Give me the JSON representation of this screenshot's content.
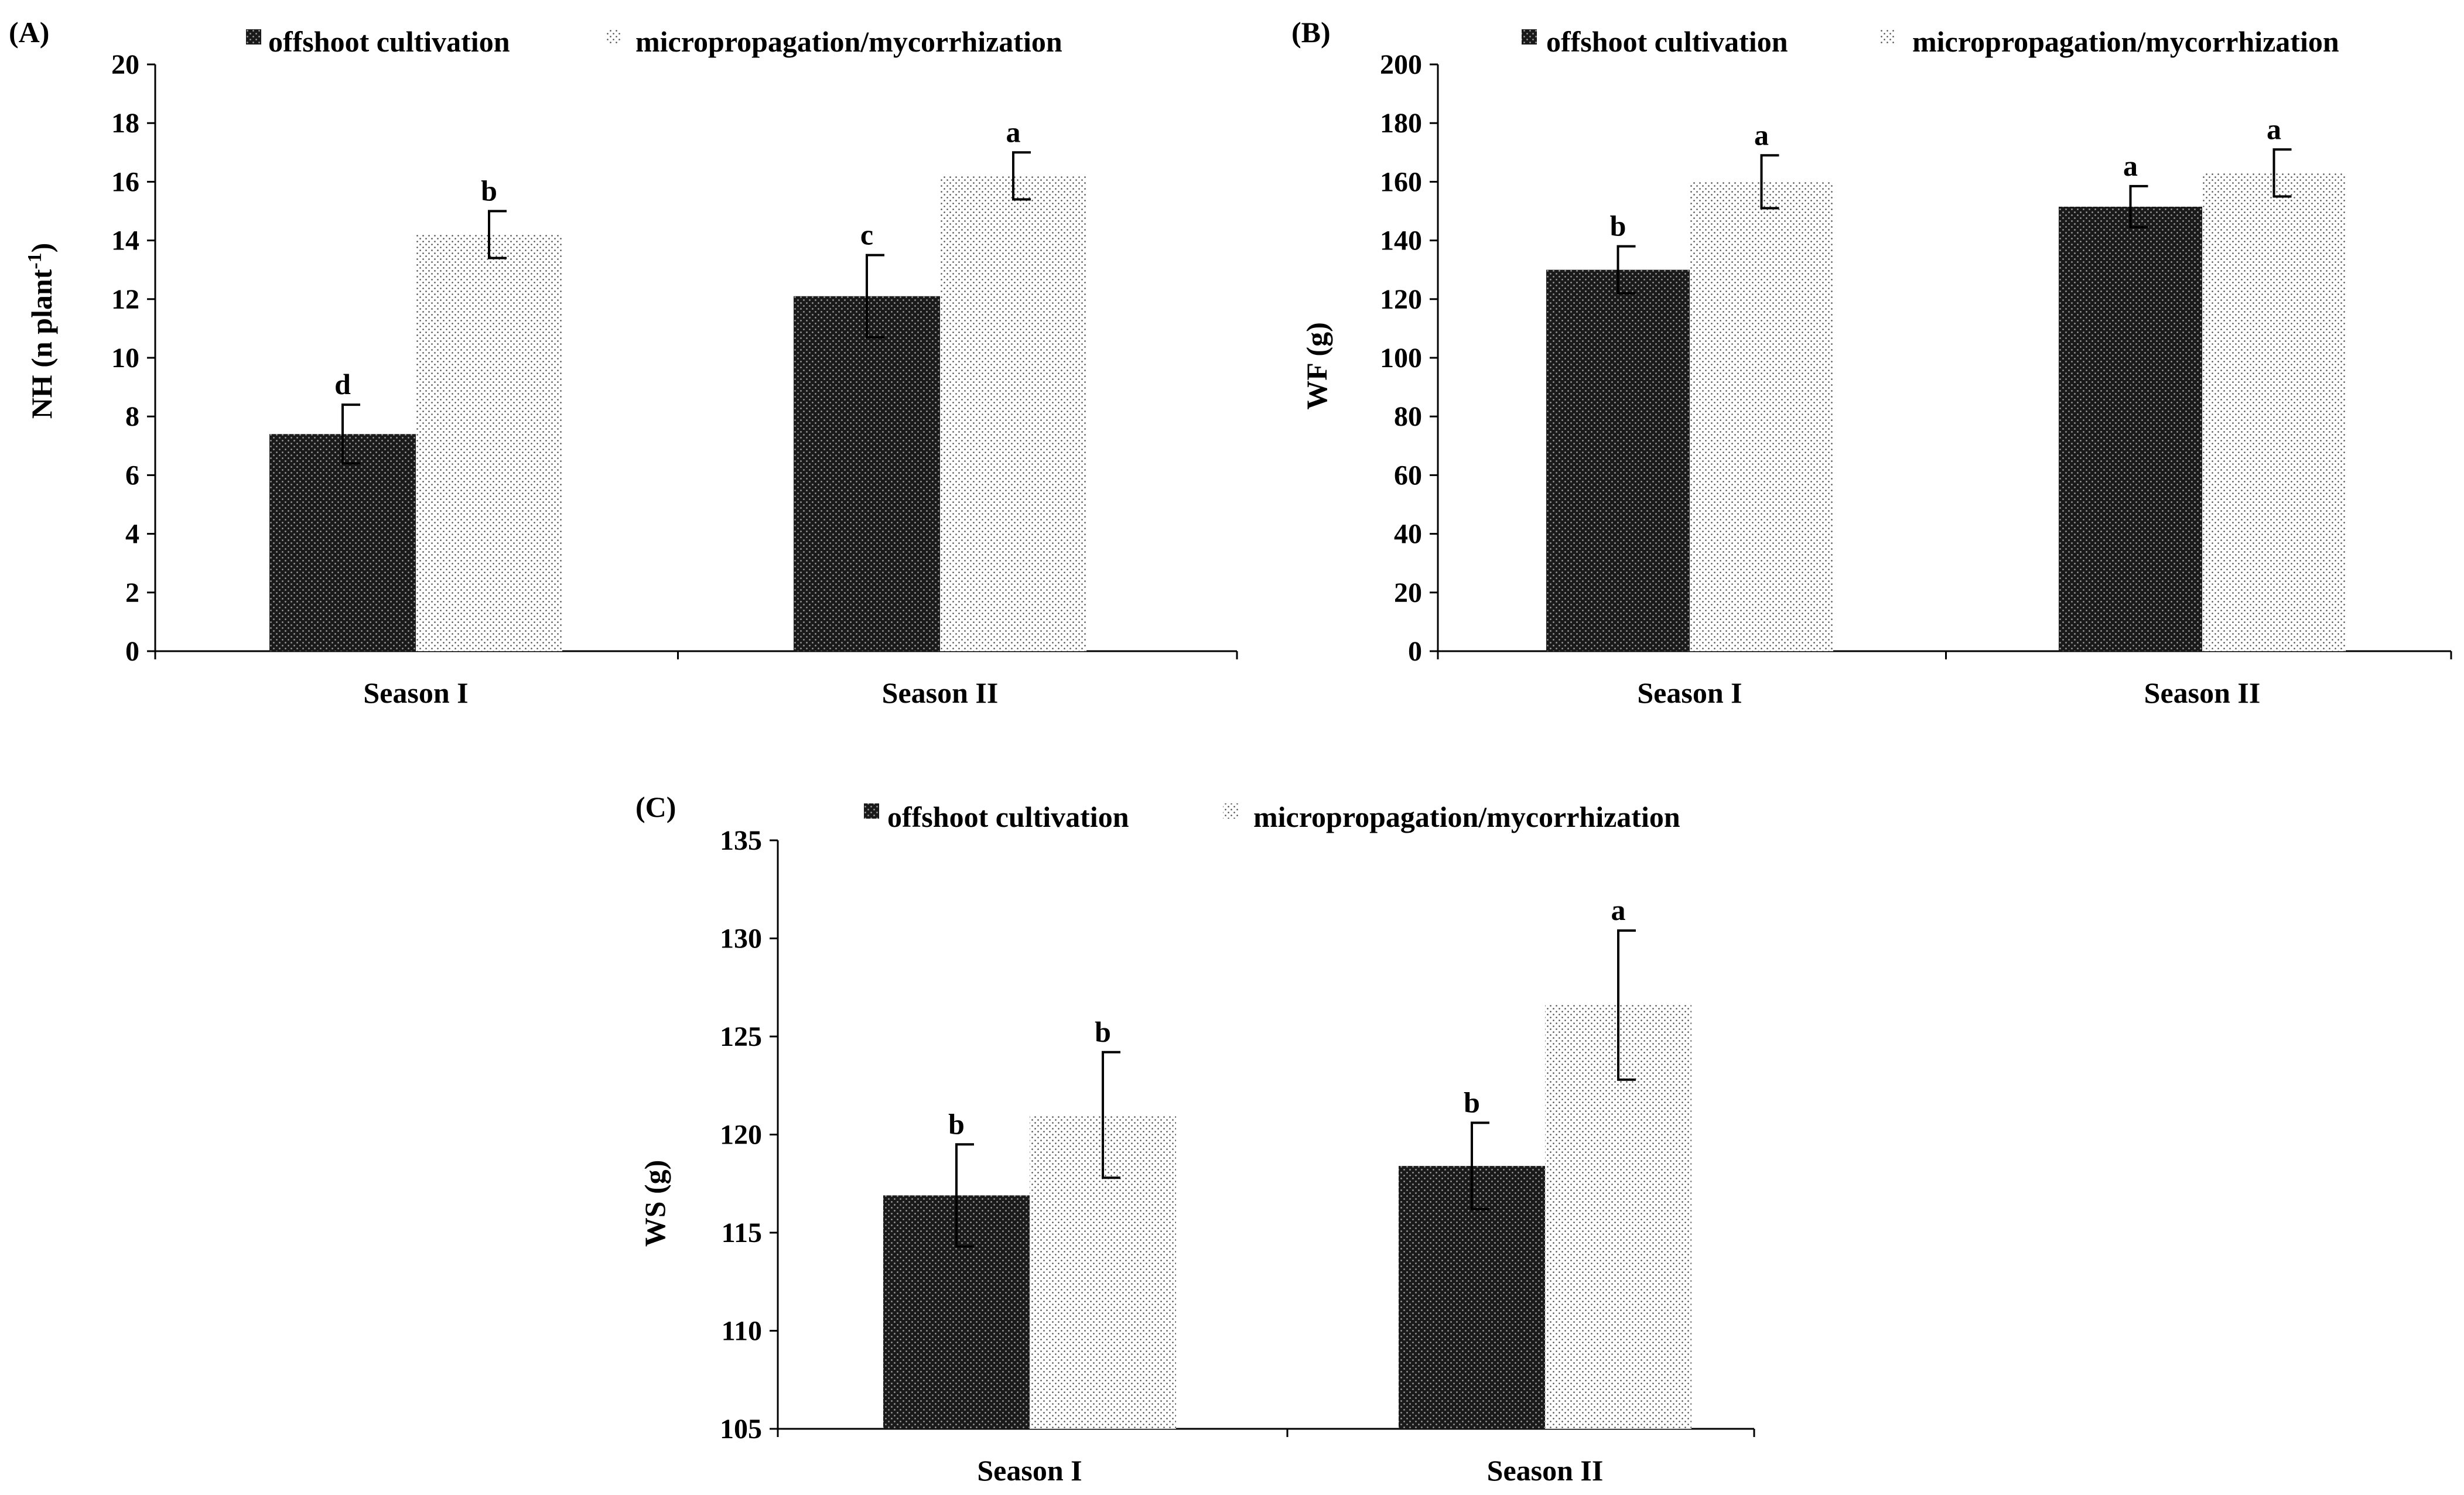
{
  "figure_title": "",
  "series_names": [
    "offshoot cultivation",
    "micropropagation/mycorrhization"
  ],
  "chart_data": [
    {
      "type": "bar",
      "panel_label": "(A)",
      "title": "",
      "categories": [
        "Season I",
        "Season II"
      ],
      "legend_entries": [
        "offshoot cultivation",
        "micropropagation/mycorrhization"
      ],
      "legend_position": "top",
      "series": [
        {
          "name": "offshoot cultivation",
          "values": [
            7.4,
            12.1
          ],
          "errors": [
            1.0,
            1.4
          ],
          "letters": [
            "d",
            "c"
          ]
        },
        {
          "name": "micropropagation/mycorrhization",
          "values": [
            14.2,
            16.2
          ],
          "errors": [
            0.8,
            0.8
          ],
          "letters": [
            "b",
            "a"
          ]
        }
      ],
      "xlabel": "",
      "ylabel": "NH (n plant",
      "ylabel_sup": "-1",
      "ylabel_tail": ")",
      "ylim": [
        0,
        20
      ],
      "yticks": [
        0,
        2,
        4,
        6,
        8,
        10,
        12,
        14,
        16,
        18,
        20
      ],
      "ytick_labels": [
        "0",
        "2",
        "4",
        "6",
        "8",
        "10",
        "12",
        "14",
        "16",
        "18",
        "20"
      ],
      "grid": false
    },
    {
      "type": "bar",
      "panel_label": "(B)",
      "title": "",
      "categories": [
        "Season I",
        "Season II"
      ],
      "legend_entries": [
        "offshoot cultivation",
        "micropropagation/mycorrhization"
      ],
      "legend_position": "top",
      "series": [
        {
          "name": "offshoot cultivation",
          "values": [
            130,
            151.5
          ],
          "errors": [
            8,
            7
          ],
          "letters": [
            "b",
            "a"
          ]
        },
        {
          "name": "micropropagation/mycorrhization",
          "values": [
            160,
            163
          ],
          "errors": [
            9,
            8
          ],
          "letters": [
            "a",
            "a"
          ]
        }
      ],
      "xlabel": "",
      "ylabel": "WF (g)",
      "ylabel_sup": "",
      "ylabel_tail": "",
      "ylim": [
        0,
        200
      ],
      "yticks": [
        0,
        20,
        40,
        60,
        80,
        100,
        120,
        140,
        160,
        180,
        200
      ],
      "ytick_labels": [
        "0",
        "20",
        "40",
        "60",
        "80",
        "100",
        "120",
        "140",
        "160",
        "180",
        "200"
      ],
      "grid": false
    },
    {
      "type": "bar",
      "panel_label": "(C)",
      "title": "",
      "categories": [
        "Season I",
        "Season II"
      ],
      "legend_entries": [
        "offshoot cultivation",
        "micropropagation/mycorrhization"
      ],
      "legend_position": "top",
      "series": [
        {
          "name": "offshoot cultivation",
          "values": [
            116.9,
            118.4
          ],
          "errors": [
            2.6,
            2.2
          ],
          "letters": [
            "b",
            "b"
          ]
        },
        {
          "name": "micropropagation/mycorrhization",
          "values": [
            121.0,
            126.6
          ],
          "errors": [
            3.2,
            3.8
          ],
          "letters": [
            "b",
            "a"
          ]
        }
      ],
      "xlabel": "",
      "ylabel": "WS (g)",
      "ylabel_sup": "",
      "ylabel_tail": "",
      "ylim": [
        105,
        135
      ],
      "yticks": [
        105,
        110,
        115,
        120,
        125,
        130,
        135
      ],
      "ytick_labels": [
        "105",
        "110",
        "115",
        "120",
        "125",
        "130",
        "135"
      ],
      "grid": false
    }
  ]
}
